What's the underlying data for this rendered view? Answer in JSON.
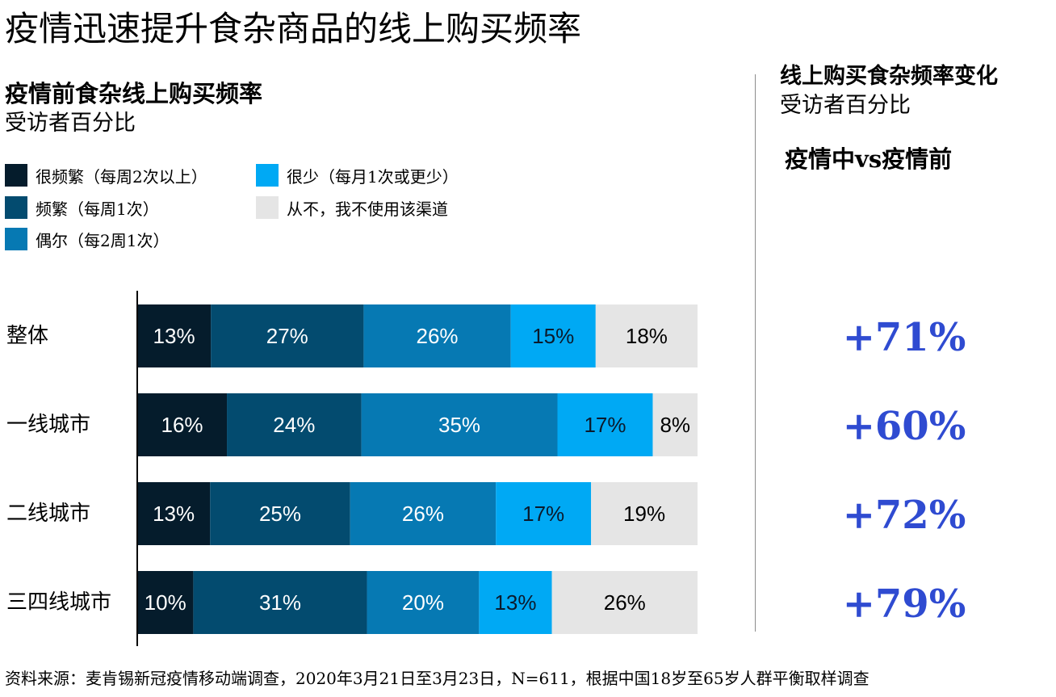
{
  "title": "疫情迅速提升食杂商品的线上购买频率",
  "left_panel": {
    "title": "疫情前食杂线上购买频率",
    "subtitle": "受访者百分比"
  },
  "right_panel": {
    "title": "线上购买食杂频率变化",
    "subtitle": "受访者百分比",
    "comparison_label": "疫情中vs疫情前"
  },
  "legend": [
    {
      "label": "很频繁（每周2次以上）",
      "color": "#051c2c"
    },
    {
      "label": "频繁（每周1次）",
      "color": "#034b6f"
    },
    {
      "label": "偶尔（每2周1次）",
      "color": "#0679b3"
    },
    {
      "label": "很少（每月1次或更少）",
      "color": "#00a9f4"
    },
    {
      "label": "从不，我不使用该渠道",
      "color": "#e5e5e5"
    }
  ],
  "source": "资料来源：麦肯锡新冠疫情移动端调查，2020年3月21日至3月23日，N=611，根据中国18岁至65岁人群平衡取样调查",
  "chart_data": {
    "type": "bar",
    "orientation": "horizontal",
    "stacked": true,
    "unit": "%",
    "categories": [
      "整体",
      "一线城市",
      "二线城市",
      "三四线城市"
    ],
    "series": [
      {
        "name": "很频繁（每周2次以上）",
        "color": "#051c2c",
        "label_color": "#ffffff",
        "values": [
          13,
          16,
          13,
          10
        ]
      },
      {
        "name": "频繁（每周1次）",
        "color": "#034b6f",
        "label_color": "#ffffff",
        "values": [
          27,
          24,
          25,
          31
        ]
      },
      {
        "name": "偶尔（每2周1次）",
        "color": "#0679b3",
        "label_color": "#ffffff",
        "values": [
          26,
          35,
          26,
          20
        ]
      },
      {
        "name": "很少（每月1次或更少）",
        "color": "#00a9f4",
        "label_color": "#0b1a2c",
        "values": [
          15,
          17,
          17,
          13
        ]
      },
      {
        "name": "从不，我不使用该渠道",
        "color": "#e5e5e5",
        "label_color": "#000000",
        "values": [
          18,
          8,
          19,
          26
        ]
      }
    ],
    "change_values": [
      "+71%",
      "+60%",
      "+72%",
      "+79%"
    ],
    "legend_position": "top-left"
  }
}
